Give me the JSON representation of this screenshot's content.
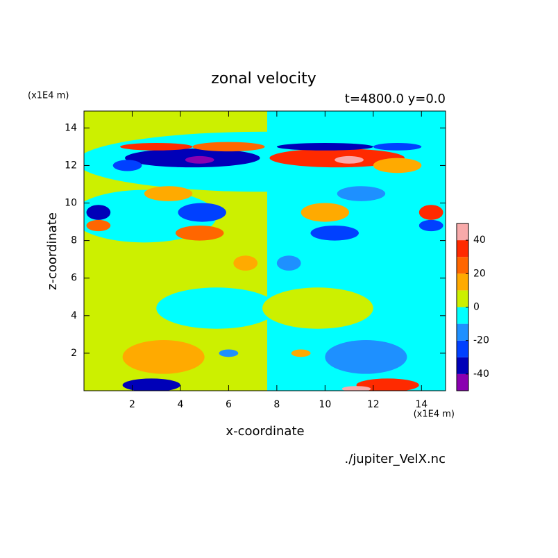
{
  "chart_data": {
    "type": "contour",
    "title": "zonal velocity",
    "subtitle": "t=4800.0 y=0.0",
    "x_label": "x-coordinate",
    "y_label": "z-coordinate",
    "x_units": "(x1E4 m)",
    "y_units": "(x1E4 m)",
    "source": "./jupiter_VelX.nc",
    "xlim": [
      0,
      15
    ],
    "ylim": [
      0,
      14.9
    ],
    "xticks": [
      2,
      4,
      6,
      8,
      10,
      12,
      14
    ],
    "yticks": [
      2,
      4,
      6,
      8,
      10,
      12,
      14
    ],
    "colorbar": {
      "levels": [
        -50,
        -40,
        -30,
        -20,
        -10,
        0,
        10,
        20,
        30,
        40,
        50
      ],
      "colors": [
        "#8a00b0",
        "#0000b8",
        "#0040ff",
        "#1e90ff",
        "#00ffff",
        "#ccf000",
        "#ffaa00",
        "#ff6600",
        "#ff2a00",
        "#f8aaaa"
      ],
      "ticks": [
        -40,
        -20,
        0,
        20,
        40
      ]
    },
    "regions": [
      {
        "shape": "rect",
        "x": 3.8,
        "z": 7.45,
        "w": 3.8,
        "h": 7.45,
        "value": 5
      },
      {
        "shape": "rect",
        "x": 11.3,
        "z": 7.45,
        "w": 3.7,
        "h": 7.45,
        "value": -5
      },
      {
        "shape": "ellipse",
        "x": 7.5,
        "z": 12.2,
        "w": 7.8,
        "h": 1.6,
        "value": -5
      },
      {
        "shape": "ellipse",
        "x": 2.5,
        "z": 9.3,
        "w": 3.0,
        "h": 1.4,
        "value": -5
      },
      {
        "shape": "ellipse",
        "x": 5.5,
        "z": 4.4,
        "w": 2.5,
        "h": 1.1,
        "value": -5
      },
      {
        "shape": "ellipse",
        "x": 9.7,
        "z": 4.4,
        "w": 2.3,
        "h": 1.1,
        "value": 5
      },
      {
        "shape": "ellipse",
        "x": 3.3,
        "z": 1.8,
        "w": 1.7,
        "h": 0.9,
        "value": 15
      },
      {
        "shape": "ellipse",
        "x": 11.7,
        "z": 1.8,
        "w": 1.7,
        "h": 0.9,
        "value": -15
      },
      {
        "shape": "ellipse",
        "x": 2.8,
        "z": 0.3,
        "w": 1.2,
        "h": 0.35,
        "value": -35
      },
      {
        "shape": "ellipse",
        "x": 12.6,
        "z": 0.3,
        "w": 1.3,
        "h": 0.35,
        "value": 30
      },
      {
        "shape": "ellipse",
        "x": 11.3,
        "z": 0.1,
        "w": 0.6,
        "h": 0.15,
        "value": 45
      },
      {
        "shape": "ellipse",
        "x": 6.7,
        "z": 6.8,
        "w": 0.5,
        "h": 0.4,
        "value": 15
      },
      {
        "shape": "ellipse",
        "x": 8.5,
        "z": 6.8,
        "w": 0.5,
        "h": 0.4,
        "value": -15
      },
      {
        "shape": "ellipse",
        "x": 4.5,
        "z": 12.4,
        "w": 2.8,
        "h": 0.5,
        "value": -35
      },
      {
        "shape": "ellipse",
        "x": 4.8,
        "z": 12.3,
        "w": 0.6,
        "h": 0.2,
        "value": -45
      },
      {
        "shape": "ellipse",
        "x": 1.8,
        "z": 12.0,
        "w": 0.6,
        "h": 0.3,
        "value": -25
      },
      {
        "shape": "ellipse",
        "x": 10.5,
        "z": 12.4,
        "w": 2.8,
        "h": 0.5,
        "value": 30
      },
      {
        "shape": "ellipse",
        "x": 11.0,
        "z": 12.3,
        "w": 0.6,
        "h": 0.2,
        "value": 45
      },
      {
        "shape": "ellipse",
        "x": 13.0,
        "z": 12.0,
        "w": 1.0,
        "h": 0.4,
        "value": 15
      },
      {
        "shape": "ellipse",
        "x": 3.0,
        "z": 13.0,
        "w": 1.5,
        "h": 0.2,
        "value": 30
      },
      {
        "shape": "ellipse",
        "x": 6.0,
        "z": 13.0,
        "w": 1.5,
        "h": 0.25,
        "value": 25
      },
      {
        "shape": "ellipse",
        "x": 10.0,
        "z": 13.0,
        "w": 2.0,
        "h": 0.2,
        "value": -35
      },
      {
        "shape": "ellipse",
        "x": 13.0,
        "z": 13.0,
        "w": 1.0,
        "h": 0.2,
        "value": -25
      },
      {
        "shape": "ellipse",
        "x": 3.5,
        "z": 10.5,
        "w": 1.0,
        "h": 0.4,
        "value": 15
      },
      {
        "shape": "ellipse",
        "x": 11.5,
        "z": 10.5,
        "w": 1.0,
        "h": 0.4,
        "value": -15
      },
      {
        "shape": "ellipse",
        "x": 0.6,
        "z": 9.5,
        "w": 0.5,
        "h": 0.4,
        "value": -35
      },
      {
        "shape": "ellipse",
        "x": 4.9,
        "z": 9.5,
        "w": 1.0,
        "h": 0.5,
        "value": -25
      },
      {
        "shape": "ellipse",
        "x": 10.0,
        "z": 9.5,
        "w": 1.0,
        "h": 0.5,
        "value": 15
      },
      {
        "shape": "ellipse",
        "x": 14.4,
        "z": 9.5,
        "w": 0.5,
        "h": 0.4,
        "value": 30
      },
      {
        "shape": "ellipse",
        "x": 0.6,
        "z": 8.8,
        "w": 0.5,
        "h": 0.3,
        "value": 25
      },
      {
        "shape": "ellipse",
        "x": 4.8,
        "z": 8.4,
        "w": 1.0,
        "h": 0.4,
        "value": 25
      },
      {
        "shape": "ellipse",
        "x": 10.4,
        "z": 8.4,
        "w": 1.0,
        "h": 0.4,
        "value": -25
      },
      {
        "shape": "ellipse",
        "x": 14.4,
        "z": 8.8,
        "w": 0.5,
        "h": 0.3,
        "value": -25
      },
      {
        "shape": "ellipse",
        "x": 6.0,
        "z": 2.0,
        "w": 0.4,
        "h": 0.2,
        "value": -15
      },
      {
        "shape": "ellipse",
        "x": 9.0,
        "z": 2.0,
        "w": 0.4,
        "h": 0.2,
        "value": 15
      }
    ]
  }
}
